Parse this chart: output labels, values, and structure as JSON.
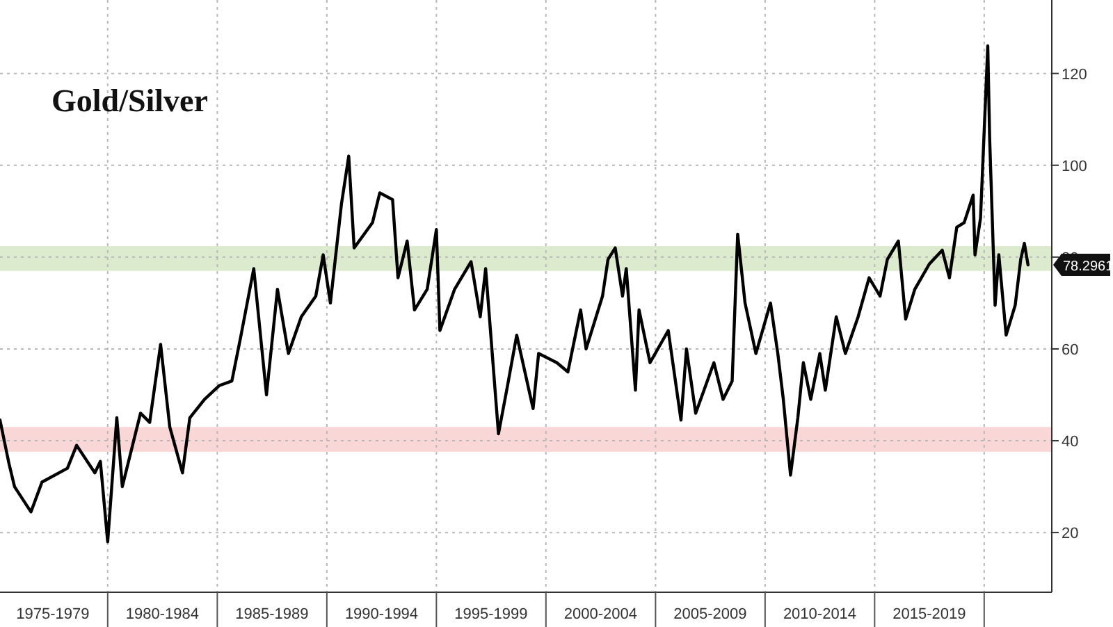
{
  "chart_data": {
    "type": "line",
    "title": "Gold/Silver",
    "x": [
      "1975-02",
      "1975-07",
      "1975-10",
      "1976-07",
      "1977-01",
      "1978-03",
      "1978-08",
      "1979-06",
      "1979-09",
      "1980-01",
      "1980-06",
      "1980-09",
      "1981-07",
      "1981-12",
      "1982-06",
      "1982-11",
      "1983-06",
      "1983-10",
      "1984-06",
      "1985-02",
      "1985-09",
      "1986-02",
      "1986-09",
      "1987-04",
      "1987-10",
      "1988-04",
      "1988-11",
      "1989-07",
      "1989-11",
      "1990-03",
      "1990-09",
      "1991-01",
      "1991-04",
      "1992-02",
      "1992-06",
      "1993-01",
      "1993-04",
      "1993-09",
      "1994-01",
      "1994-08",
      "1995-01",
      "1995-03",
      "1995-11",
      "1996-08",
      "1997-01",
      "1997-04",
      "1997-11",
      "1998-04",
      "1998-09",
      "1999-06",
      "1999-09",
      "2000-07",
      "2001-01",
      "2001-08",
      "2001-11",
      "2002-08",
      "2002-11",
      "2003-03",
      "2003-07",
      "2003-09",
      "2004-02",
      "2004-04",
      "2004-10",
      "2005-08",
      "2006-03",
      "2006-06",
      "2006-11",
      "2007-09",
      "2008-02",
      "2008-07",
      "2008-10",
      "2009-02",
      "2009-08",
      "2010-04",
      "2010-08",
      "2010-11",
      "2011-03",
      "2011-07",
      "2011-10",
      "2012-02",
      "2012-07",
      "2012-10",
      "2013-04",
      "2013-09",
      "2014-04",
      "2014-10",
      "2015-04",
      "2015-08",
      "2016-02",
      "2016-06",
      "2016-11",
      "2017-07",
      "2018-02",
      "2018-06",
      "2018-10",
      "2019-02",
      "2019-07",
      "2019-08",
      "2019-11",
      "2020-03",
      "2020-04",
      "2020-07",
      "2020-09",
      "2021-01",
      "2021-06",
      "2021-09",
      "2021-11",
      "2022-01"
    ],
    "series": [
      {
        "color": "#000000",
        "values": [
          44.5,
          35,
          30,
          24.5,
          31,
          34,
          39,
          33,
          35.5,
          18,
          45,
          30,
          46,
          44,
          61,
          43,
          33,
          45,
          49,
          52,
          53,
          63,
          77.5,
          50,
          73,
          59,
          67,
          71.5,
          80.5,
          70,
          91.5,
          102,
          82,
          87.5,
          94,
          92.5,
          75.5,
          83.5,
          68.5,
          73,
          86,
          64,
          73,
          79,
          67,
          77.5,
          41.5,
          52,
          63,
          47,
          59,
          57,
          55,
          68.5,
          60,
          71.5,
          79.5,
          82,
          71.5,
          77.5,
          51,
          68.5,
          57,
          64,
          44.5,
          60,
          46,
          57,
          49,
          53,
          85,
          70,
          59,
          70,
          59,
          49,
          32.5,
          45,
          57,
          49,
          59,
          51,
          67,
          59,
          67,
          75.5,
          71.5,
          79.5,
          83.5,
          66.5,
          73,
          78.5,
          81.5,
          75.5,
          86.5,
          87.5,
          93.5,
          80.5,
          88.5,
          126,
          106,
          69.5,
          80.5,
          63,
          69.5,
          79.5,
          83,
          78.3
        ]
      }
    ],
    "xlim": [
      "1975-02",
      "2023-02"
    ],
    "xticks": [
      {
        "value": "1977-07",
        "label": "1975-1979"
      },
      {
        "value": "1980-01",
        "label": null
      },
      {
        "value": "1982-07",
        "label": "1980-1984"
      },
      {
        "value": "1985-01",
        "label": null
      },
      {
        "value": "1987-07",
        "label": "1985-1989"
      },
      {
        "value": "1990-01",
        "label": null
      },
      {
        "value": "1992-07",
        "label": "1990-1994"
      },
      {
        "value": "1995-01",
        "label": null
      },
      {
        "value": "1997-07",
        "label": "1995-1999"
      },
      {
        "value": "2000-01",
        "label": null
      },
      {
        "value": "2002-07",
        "label": "2000-2004"
      },
      {
        "value": "2005-01",
        "label": null
      },
      {
        "value": "2007-07",
        "label": "2005-2009"
      },
      {
        "value": "2010-01",
        "label": null
      },
      {
        "value": "2012-07",
        "label": "2010-2014"
      },
      {
        "value": "2015-01",
        "label": null
      },
      {
        "value": "2017-07",
        "label": "2015-2019"
      },
      {
        "value": "2020-01",
        "label": null
      }
    ],
    "ylim": [
      7,
      136
    ],
    "yticks": [
      20,
      40,
      60,
      80,
      100,
      120
    ],
    "grid": true,
    "line_style": "solid",
    "bands": [
      {
        "axis": "y",
        "from": 77,
        "to": 82.4,
        "color": "#d6e8c4"
      },
      {
        "axis": "y",
        "from": 37.6,
        "to": 43,
        "color": "#f8d0d0"
      }
    ],
    "annotations": [
      {
        "text": "78.2961",
        "x": "2022-01",
        "y": 78.2961
      }
    ]
  }
}
